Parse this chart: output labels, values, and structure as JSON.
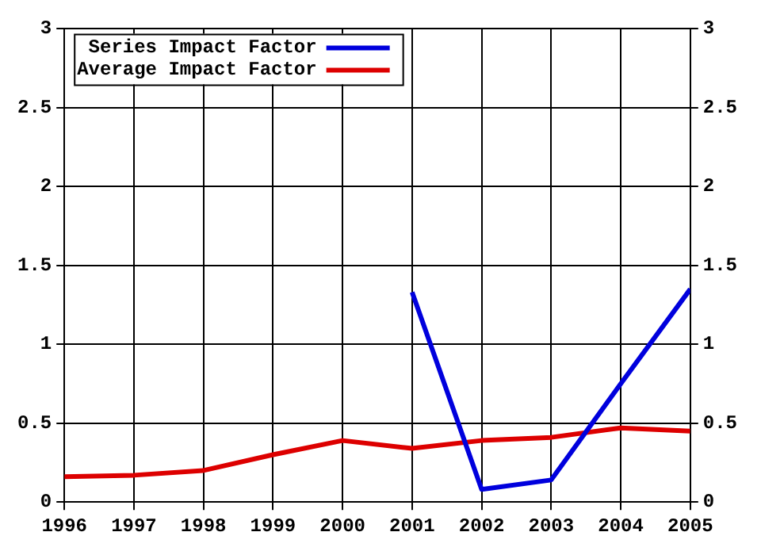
{
  "chart_data": {
    "type": "line",
    "x": [
      1996,
      1997,
      1998,
      1999,
      2000,
      2001,
      2002,
      2003,
      2004,
      2005
    ],
    "series": [
      {
        "name": "Series Impact Factor",
        "color": "#0000dd",
        "values": [
          null,
          null,
          null,
          null,
          null,
          1.33,
          0.08,
          0.14,
          0.75,
          1.35
        ]
      },
      {
        "name": "Average Impact Factor",
        "color": "#dd0000",
        "values": [
          0.16,
          0.17,
          0.2,
          0.3,
          0.39,
          0.34,
          0.39,
          0.41,
          0.47,
          0.45
        ]
      }
    ],
    "xlim": [
      1996,
      2005
    ],
    "xticks": [
      1996,
      1997,
      1998,
      1999,
      2000,
      2001,
      2002,
      2003,
      2004,
      2005
    ],
    "ylim": [
      0,
      3
    ],
    "yticks": [
      0,
      0.5,
      1,
      1.5,
      2,
      2.5,
      3
    ],
    "y2lim": [
      0,
      3
    ],
    "y2ticks": [
      0,
      0.5,
      1,
      1.5,
      2,
      2.5,
      3
    ],
    "grid": true,
    "legend": "top left",
    "marker": "none",
    "line_style": "solid"
  }
}
